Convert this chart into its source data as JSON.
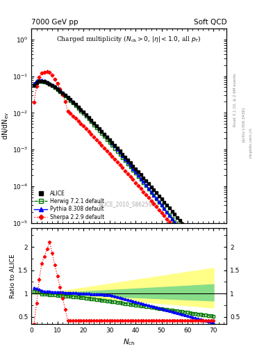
{
  "title_left": "7000 GeV pp",
  "title_right": "Soft QCD",
  "plot_title": "Charged multiplicity (N_{ch} > 0, |\\eta| < 1.0, all p_{T})",
  "ylabel_main": "dN/dN_{ev}",
  "ylabel_ratio": "Ratio to ALICE",
  "xlabel": "N_{ch}",
  "watermark": "ALICE_2010_S8625980",
  "right_label_1": "Rivet 3.1.10, ≥ 2.6M events",
  "right_label_2": "[arXiv:1306.3436]",
  "right_label_3": "mcplots.cern.ch",
  "xlim": [
    0,
    75
  ],
  "ylim_main": [
    1e-05,
    2.0
  ],
  "ylim_ratio": [
    0.35,
    2.4
  ],
  "ratio_yticks": [
    0.5,
    1.0,
    1.5,
    2.0
  ],
  "ratio_yticklabels": [
    "0.5",
    "1",
    "1.5",
    "2"
  ],
  "band_yellow_color": "#ffff88",
  "band_green_color": "#88dd88",
  "alice_color": "black",
  "herwig_color": "#007700",
  "pythia_color": "blue",
  "sherpa_color": "red"
}
